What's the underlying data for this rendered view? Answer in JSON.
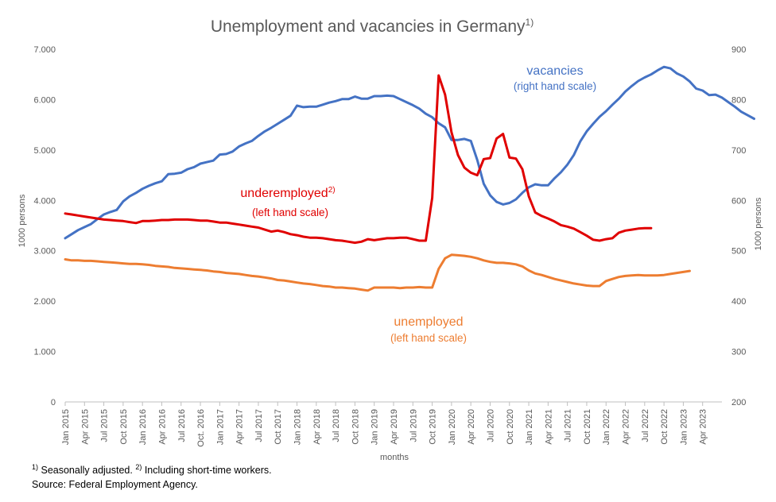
{
  "chart_data": {
    "type": "line",
    "title": "Unemployment and vacancies in Germany",
    "title_superscript": "1)",
    "xlabel": "months",
    "ylabel_left": "1000 persons",
    "ylabel_right": "1000 persons",
    "ylim_left": [
      0,
      7000
    ],
    "ylim_right": [
      200,
      900
    ],
    "y_ticks_left": [
      "0",
      "1.000",
      "2.000",
      "3.000",
      "4.000",
      "5.000",
      "6.000",
      "7.000"
    ],
    "y_ticks_right": [
      "200",
      "300",
      "400",
      "500",
      "600",
      "700",
      "800",
      "900"
    ],
    "grid": false,
    "x_tick_labels": [
      "Jan 2015",
      "Apr 2015",
      "Jul 2015",
      "Oct 2015",
      "Jan 2016",
      "Apr 2016",
      "Jul 2016",
      "Oct. 2016",
      "Jan 2017",
      "Apr 2017",
      "Jul 2017",
      "Oct 2017",
      "Jan 2018",
      "Apr 2018",
      "Jul 2018",
      "Oct 2018",
      "Jan 2019",
      "Apr 2019",
      "Jul 2019",
      "Oct 2019",
      "Jan 2020",
      "Apr 2020",
      "Jul 2020",
      "Oct 2020",
      "Jan 2021",
      "Apr 2021",
      "Jul 2021",
      "Oct 2021",
      "Jan 2022",
      "Apr 2022",
      "Jul 2022",
      "Oct 2022",
      "Jan 2023",
      "Apr 2023"
    ],
    "x_start": "2015-01",
    "series": [
      {
        "name": "vacancies",
        "axis": "right",
        "color": "#4472c4",
        "values": [
          525,
          533,
          541,
          547,
          553,
          563,
          572,
          577,
          581,
          598,
          608,
          615,
          623,
          629,
          634,
          638,
          652,
          653,
          655,
          662,
          666,
          673,
          676,
          679,
          691,
          692,
          697,
          707,
          713,
          718,
          728,
          737,
          744,
          752,
          760,
          768,
          788,
          785,
          786,
          786,
          790,
          794,
          797,
          801,
          801,
          806,
          802,
          802,
          807,
          807,
          808,
          807,
          801,
          795,
          789,
          782,
          772,
          765,
          753,
          745,
          720,
          720,
          722,
          718,
          680,
          633,
          610,
          597,
          592,
          595,
          602,
          615,
          626,
          632,
          630,
          630,
          644,
          656,
          671,
          690,
          717,
          737,
          752,
          766,
          777,
          790,
          802,
          816,
          827,
          837,
          844,
          850,
          858,
          865,
          862,
          852,
          846,
          836,
          822,
          818,
          809,
          810,
          804,
          795,
          786,
          776,
          769,
          762
        ]
      },
      {
        "name": "underemployed",
        "superscript": "2)",
        "axis": "left",
        "color": "#e00000",
        "values": [
          3740,
          3720,
          3700,
          3680,
          3660,
          3640,
          3620,
          3610,
          3600,
          3590,
          3570,
          3550,
          3590,
          3590,
          3600,
          3610,
          3610,
          3620,
          3620,
          3620,
          3610,
          3600,
          3600,
          3580,
          3560,
          3560,
          3540,
          3520,
          3500,
          3480,
          3460,
          3420,
          3380,
          3400,
          3370,
          3330,
          3310,
          3280,
          3260,
          3260,
          3250,
          3230,
          3210,
          3200,
          3180,
          3160,
          3180,
          3230,
          3210,
          3230,
          3250,
          3250,
          3260,
          3260,
          3230,
          3200,
          3200,
          4050,
          6480,
          6100,
          5350,
          4900,
          4650,
          4550,
          4500,
          4820,
          4840,
          5230,
          5320,
          4850,
          4830,
          4620,
          4080,
          3760,
          3690,
          3640,
          3580,
          3510,
          3480,
          3440,
          3370,
          3300,
          3220,
          3200,
          3230,
          3250,
          3360,
          3400,
          3420,
          3440,
          3450,
          3450
        ]
      },
      {
        "name": "unemployed",
        "axis": "left",
        "color": "#ed7d31",
        "values": [
          2830,
          2810,
          2810,
          2800,
          2800,
          2790,
          2780,
          2770,
          2760,
          2750,
          2740,
          2740,
          2730,
          2720,
          2700,
          2690,
          2680,
          2660,
          2650,
          2640,
          2630,
          2620,
          2610,
          2590,
          2580,
          2560,
          2550,
          2540,
          2520,
          2500,
          2490,
          2470,
          2450,
          2420,
          2410,
          2390,
          2370,
          2350,
          2340,
          2320,
          2300,
          2290,
          2270,
          2270,
          2260,
          2250,
          2230,
          2210,
          2270,
          2270,
          2270,
          2270,
          2260,
          2270,
          2270,
          2280,
          2270,
          2270,
          2640,
          2850,
          2920,
          2910,
          2900,
          2880,
          2850,
          2810,
          2780,
          2760,
          2760,
          2750,
          2730,
          2690,
          2610,
          2550,
          2520,
          2480,
          2440,
          2410,
          2380,
          2350,
          2330,
          2310,
          2300,
          2300,
          2400,
          2440,
          2480,
          2500,
          2510,
          2520,
          2510,
          2510,
          2510,
          2520,
          2540,
          2560,
          2580,
          2600
        ]
      }
    ],
    "annotations": [
      {
        "id": "vac",
        "label": "vacancies",
        "sub": "(right hand scale)",
        "color": "#4472c4"
      },
      {
        "id": "under",
        "label": "underemployed",
        "sup": "2)",
        "sub": "(left hand scale)",
        "color": "#e00000"
      },
      {
        "id": "unemp",
        "label": "unemployed",
        "sub": "(left hand scale)",
        "color": "#ed7d31"
      }
    ]
  },
  "footnotes": {
    "line1_sup1": "1)",
    "line1_text1": " Seasonally adjusted. ",
    "line1_sup2": "2)",
    "line1_text2": " Including short-time workers.",
    "line2": "Source: Federal Employment Agency."
  }
}
